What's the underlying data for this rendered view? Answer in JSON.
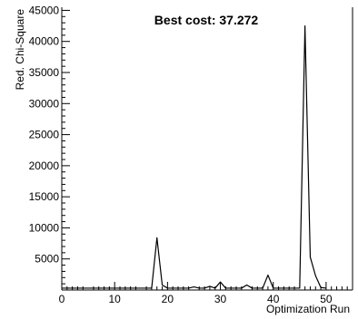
{
  "chart_data": {
    "type": "line",
    "title": "Best cost: 37.272",
    "xlabel": "Optimization Run",
    "ylabel": "Red. Chi-Square",
    "xlim": [
      0,
      55
    ],
    "ylim": [
      0,
      45500
    ],
    "xticks": [
      0,
      10,
      20,
      30,
      40,
      50
    ],
    "yticks": [
      5000,
      10000,
      15000,
      20000,
      25000,
      30000,
      35000,
      40000,
      45000
    ],
    "grid": false,
    "legend": "none",
    "series": [
      {
        "color": "#000000",
        "x": [
          0,
          1,
          2,
          3,
          4,
          5,
          6,
          7,
          8,
          9,
          10,
          11,
          12,
          13,
          14,
          15,
          16,
          17,
          18,
          19,
          20,
          21,
          22,
          23,
          24,
          25,
          26,
          27,
          28,
          29,
          30,
          31,
          32,
          33,
          34,
          35,
          36,
          37,
          38,
          39,
          40,
          41,
          42,
          43,
          44,
          45,
          46,
          47,
          48,
          49,
          50
        ],
        "y": [
          300,
          300,
          300,
          300,
          300,
          300,
          300,
          300,
          300,
          300,
          300,
          300,
          300,
          300,
          300,
          300,
          300,
          300,
          8400,
          800,
          300,
          300,
          300,
          300,
          300,
          500,
          300,
          300,
          600,
          300,
          1300,
          300,
          300,
          300,
          300,
          800,
          300,
          300,
          300,
          2400,
          300,
          300,
          300,
          300,
          300,
          300,
          42500,
          5300,
          2300,
          400,
          300
        ]
      }
    ]
  }
}
